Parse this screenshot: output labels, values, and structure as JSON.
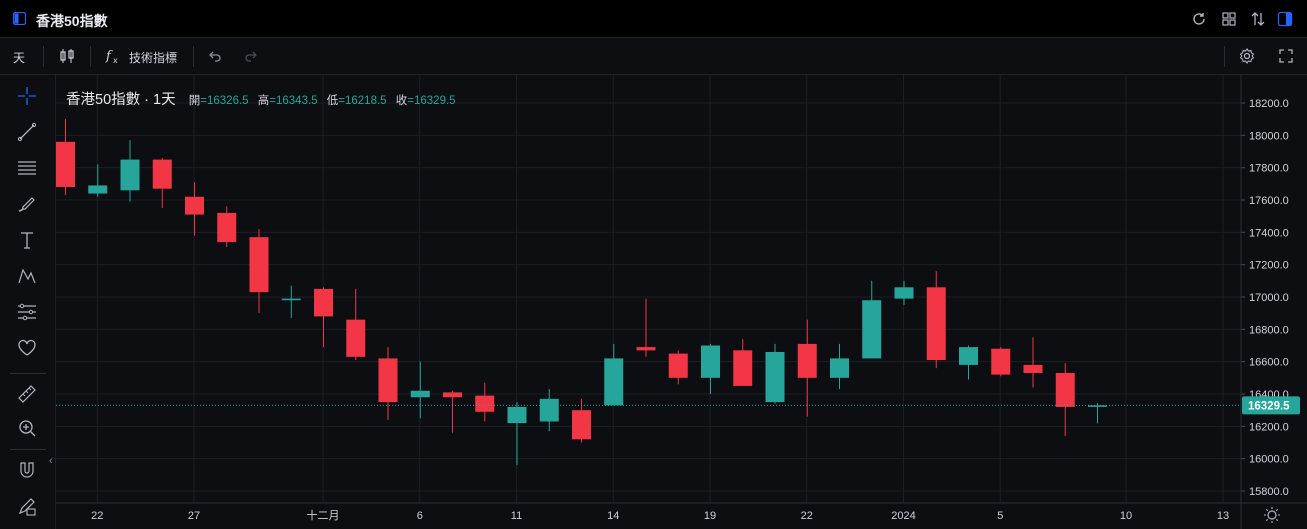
{
  "window": {
    "title": "香港50指數"
  },
  "toolbar": {
    "interval": "天",
    "indicators_label": "技術指標"
  },
  "legend": {
    "symbol": "香港50指數 · 1天",
    "open_label": "開",
    "open": "=16326.5",
    "high_label": "高",
    "high": "=16343.5",
    "low_label": "低",
    "low": "=16218.5",
    "close_label": "收",
    "close": "=16329.5"
  },
  "colors": {
    "up": "#26a69a",
    "down": "#f23645",
    "background": "#0d0e12",
    "grid": "#1c1f26",
    "text": "#d1d4dc"
  },
  "icons": {
    "titlebar": [
      "layout-icon",
      "refresh-icon",
      "grid-icon",
      "compare-icon",
      "panel-icon"
    ],
    "toolbar": [
      "candles-icon",
      "function-icon",
      "undo-icon",
      "redo-icon",
      "settings-icon",
      "fullscreen-icon"
    ],
    "leftbar": [
      "crosshair-icon",
      "trendline-icon",
      "fib-icon",
      "brush-icon",
      "text-icon",
      "pattern-icon",
      "forecast-icon",
      "heart-icon",
      "ruler-icon",
      "zoom-icon",
      "magnet-icon",
      "lock-draw-icon"
    ],
    "axis": [
      "sun-icon"
    ]
  },
  "chart_data": {
    "type": "candlestick",
    "grid": true,
    "y_axis_position": "right",
    "ylim": [
      15750,
      18300
    ],
    "y_ticks": [
      15800,
      16000,
      16200,
      16400,
      16600,
      16800,
      17000,
      17200,
      17400,
      17600,
      17800,
      18000,
      18200
    ],
    "y_tick_labels": [
      "15800.0",
      "16000.0",
      "16200.0",
      "16400.0",
      "16600.0",
      "16800.0",
      "17000.0",
      "17200.0",
      "17400.0",
      "17600.0",
      "17800.0",
      "18000.0",
      "18200.0"
    ],
    "x_tick_labels": [
      "22",
      "27",
      "十二月",
      "6",
      "11",
      "14",
      "19",
      "22",
      "2024",
      "5",
      "10",
      "13"
    ],
    "last_price": 16329.5,
    "last_price_label": "16329.5",
    "candles": [
      {
        "o": 17960,
        "h": 18100,
        "l": 17630,
        "c": 17680
      },
      {
        "o": 17640,
        "h": 17820,
        "l": 17620,
        "c": 17690
      },
      {
        "o": 17660,
        "h": 17970,
        "l": 17590,
        "c": 17850
      },
      {
        "o": 17850,
        "h": 17860,
        "l": 17550,
        "c": 17670
      },
      {
        "o": 17620,
        "h": 17710,
        "l": 17380,
        "c": 17510
      },
      {
        "o": 17520,
        "h": 17560,
        "l": 17310,
        "c": 17340
      },
      {
        "o": 17370,
        "h": 17420,
        "l": 16900,
        "c": 17030
      },
      {
        "o": 16980,
        "h": 17070,
        "l": 16870,
        "c": 16990
      },
      {
        "o": 17050,
        "h": 17060,
        "l": 16690,
        "c": 16880
      },
      {
        "o": 16860,
        "h": 17050,
        "l": 16610,
        "c": 16630
      },
      {
        "o": 16620,
        "h": 16690,
        "l": 16240,
        "c": 16350
      },
      {
        "o": 16380,
        "h": 16600,
        "l": 16250,
        "c": 16420
      },
      {
        "o": 16410,
        "h": 16420,
        "l": 16160,
        "c": 16380
      },
      {
        "o": 16390,
        "h": 16470,
        "l": 16230,
        "c": 16290
      },
      {
        "o": 16220,
        "h": 16350,
        "l": 15960,
        "c": 16320
      },
      {
        "o": 16230,
        "h": 16430,
        "l": 16170,
        "c": 16370
      },
      {
        "o": 16300,
        "h": 16370,
        "l": 16100,
        "c": 16120
      },
      {
        "o": 16330,
        "h": 16710,
        "l": 16330,
        "c": 16620
      },
      {
        "o": 16690,
        "h": 16990,
        "l": 16630,
        "c": 16670
      },
      {
        "o": 16650,
        "h": 16670,
        "l": 16460,
        "c": 16500
      },
      {
        "o": 16500,
        "h": 16710,
        "l": 16400,
        "c": 16700
      },
      {
        "o": 16670,
        "h": 16740,
        "l": 16450,
        "c": 16450
      },
      {
        "o": 16350,
        "h": 16710,
        "l": 16340,
        "c": 16660
      },
      {
        "o": 16710,
        "h": 16860,
        "l": 16260,
        "c": 16500
      },
      {
        "o": 16500,
        "h": 16710,
        "l": 16430,
        "c": 16620
      },
      {
        "o": 16620,
        "h": 17100,
        "l": 16620,
        "c": 16980
      },
      {
        "o": 16990,
        "h": 17100,
        "l": 16950,
        "c": 17060
      },
      {
        "o": 17060,
        "h": 17160,
        "l": 16560,
        "c": 16610
      },
      {
        "o": 16580,
        "h": 16700,
        "l": 16490,
        "c": 16690
      },
      {
        "o": 16680,
        "h": 16690,
        "l": 16510,
        "c": 16520
      },
      {
        "o": 16580,
        "h": 16750,
        "l": 16440,
        "c": 16530
      },
      {
        "o": 16530,
        "h": 16590,
        "l": 16140,
        "c": 16320
      },
      {
        "o": 16326.5,
        "h": 16343.5,
        "l": 16218.5,
        "c": 16329.5
      }
    ]
  }
}
